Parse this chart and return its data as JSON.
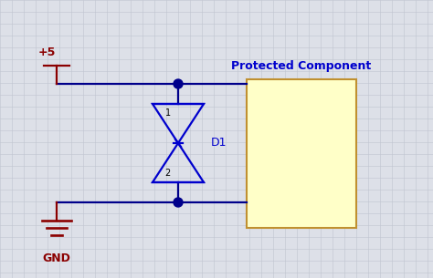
{
  "bg_color": "#dde0e8",
  "grid_color": "#c0c4d0",
  "wire_color": "#00008B",
  "symbol_color": "#0000CD",
  "label_color": "#0000CD",
  "power_color": "#8B0000",
  "gnd_color": "#8B0000",
  "title": "Protected Component",
  "title_color": "#0000CD",
  "component_fill": "#FFFFC8",
  "component_edge": "#C09030",
  "junction_color": "#00008B",
  "vdd_label": "+5",
  "gnd_label": "GND",
  "d1_label": "D1",
  "figw": 4.74,
  "figh": 3.05,
  "dpi": 100
}
